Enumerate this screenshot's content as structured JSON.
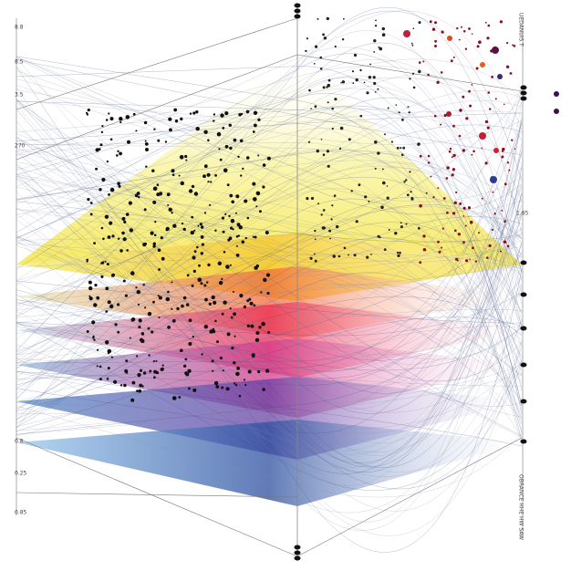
{
  "left_labels": [
    "8.8",
    "8.5",
    "3.5",
    "270",
    "0.8",
    "0.25",
    "0.85"
  ],
  "right_label": "1.85",
  "right_top_vertical": "UEDANUIS T",
  "right_bottom_vertical": "OBRANCE HHE HW SAW"
}
